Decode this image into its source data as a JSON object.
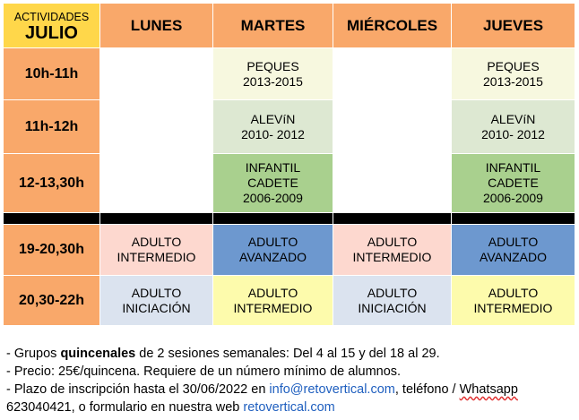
{
  "header": {
    "corner_top": "ACTIVIDADES",
    "corner_month": "JULIO",
    "days": [
      "LUNES",
      "MARTES",
      "MIÉRCOLES",
      "JUEVES"
    ]
  },
  "rows": [
    {
      "time": "10h-11h",
      "cells": [
        {
          "lines": []
        },
        {
          "lines": [
            "PEQUES",
            "2013-2015"
          ]
        },
        {
          "lines": []
        },
        {
          "lines": [
            "PEQUES",
            "2013-2015"
          ]
        }
      ]
    },
    {
      "time": "11h-12h",
      "cells": [
        {
          "lines": []
        },
        {
          "lines": [
            "ALEVíN",
            "2010- 2012"
          ]
        },
        {
          "lines": []
        },
        {
          "lines": [
            "ALEVíN",
            "2010- 2012"
          ]
        }
      ]
    },
    {
      "time": "12-13,30h",
      "cells": [
        {
          "lines": []
        },
        {
          "lines": [
            "INFANTIL",
            "CADETE",
            "2006-2009"
          ]
        },
        {
          "lines": []
        },
        {
          "lines": [
            "INFANTIL",
            "CADETE",
            "2006-2009"
          ]
        }
      ]
    },
    {
      "time": "19-20,30h",
      "cells": [
        {
          "lines": [
            "ADULTO",
            "INTERMEDIO"
          ]
        },
        {
          "lines": [
            "ADULTO",
            "AVANZADO"
          ]
        },
        {
          "lines": [
            "ADULTO",
            "INTERMEDIO"
          ]
        },
        {
          "lines": [
            "ADULTO",
            "AVANZADO"
          ]
        }
      ]
    },
    {
      "time": "20,30-22h",
      "cells": [
        {
          "lines": [
            "ADULTO",
            "INICIACIÓN"
          ]
        },
        {
          "lines": [
            "ADULTO",
            "INTERMEDIO"
          ]
        },
        {
          "lines": [
            "ADULTO",
            "INICIACIÓN"
          ]
        },
        {
          "lines": [
            "ADULTO",
            "INTERMEDIO"
          ]
        }
      ]
    }
  ],
  "colors": {
    "header_orange": "#f9a86a",
    "corner_yellow": "#ffd74a",
    "intermedio_peach": "#fdd8cf",
    "avanzado_blue": "#6d98cf",
    "iniciacion_lightblue": "#dbe3ef",
    "intermedio_yellow": "#fdfbac",
    "peques_green": "#f7f8df",
    "alevin_green": "#dde8d2",
    "infantil_green": "#a9d08e",
    "link_blue": "#1f5fbf"
  },
  "notes": {
    "line1_pre": "- Grupos ",
    "line1_bold": "quincenales",
    "line1_post": " de 2 sesiones semanales: Del 4 al 15 y del 18 al 29.",
    "line2": "- Precio: 25€/quincena. Requiere de un número mínimo de alumnos.",
    "line3_pre": "- Plazo de inscripción hasta el 30/06/2022 en ",
    "email": "info@retovertical.com",
    "line3_mid": ", teléfono / ",
    "whatsapp": "Whatsapp",
    "line4_pre": "623040421, o formulario en nuestra web ",
    "website": "retovertical.com"
  }
}
